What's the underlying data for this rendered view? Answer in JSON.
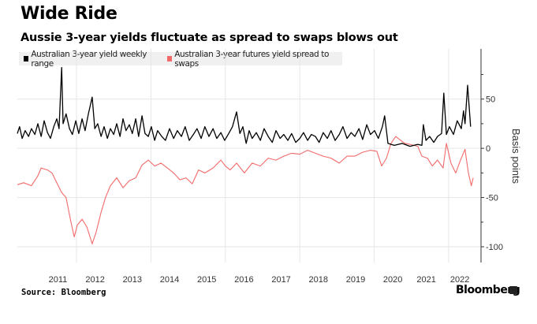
{
  "chart_data": {
    "type": "line",
    "title": "Wide Ride",
    "subtitle": "Aussie 3-year yields fluctuate as spread to swaps blows out",
    "xlabel": "",
    "ylabel": "Basis points",
    "xlim": [
      2010.41,
      2022.87
    ],
    "ylim": [
      -116,
      101
    ],
    "x_ticks": [
      {
        "label": "2011",
        "value": 2011.5
      },
      {
        "label": "2012",
        "value": 2012.5
      },
      {
        "label": "2013",
        "value": 2013.5
      },
      {
        "label": "2014",
        "value": 2014.5
      },
      {
        "label": "2015",
        "value": 2015.5
      },
      {
        "label": "2016",
        "value": 2016.5
      },
      {
        "label": "2017",
        "value": 2017.5
      },
      {
        "label": "2018",
        "value": 2018.5
      },
      {
        "label": "2019",
        "value": 2019.5
      },
      {
        "label": "2020",
        "value": 2020.5
      },
      {
        "label": "2021",
        "value": 2021.4
      },
      {
        "label": "2022",
        "value": 2022.3
      }
    ],
    "x_gridlines": [
      2012,
      2014,
      2016,
      2018,
      2020,
      2022
    ],
    "y_ticks": [
      {
        "label": "50",
        "value": 50
      },
      {
        "label": "0",
        "value": 0
      },
      {
        "label": "-50",
        "value": -50
      },
      {
        "label": "-100",
        "value": -100
      }
    ],
    "y_minor_ticks": [
      75,
      25,
      -25,
      -75
    ],
    "grid": true,
    "legend_position": "top-left",
    "series": [
      {
        "name": "Australian 3-year yield weekly range",
        "color": "#000000",
        "x": [
          2010.41,
          2010.47,
          2010.54,
          2010.62,
          2010.71,
          2010.79,
          2010.88,
          2010.96,
          2011.05,
          2011.13,
          2011.22,
          2011.3,
          2011.39,
          2011.47,
          2011.53,
          2011.6,
          2011.64,
          2011.72,
          2011.81,
          2011.89,
          2011.98,
          2012.06,
          2012.15,
          2012.23,
          2012.32,
          2012.42,
          2012.49,
          2012.57,
          2012.66,
          2012.74,
          2012.83,
          2012.91,
          2013.0,
          2013.08,
          2013.17,
          2013.25,
          2013.33,
          2013.42,
          2013.5,
          2013.59,
          2013.67,
          2013.76,
          2013.84,
          2013.93,
          2014.01,
          2014.1,
          2014.18,
          2014.29,
          2014.39,
          2014.5,
          2014.61,
          2014.71,
          2014.82,
          2014.92,
          2015.03,
          2015.14,
          2015.24,
          2015.35,
          2015.45,
          2015.56,
          2015.67,
          2015.77,
          2015.88,
          2015.98,
          2016.09,
          2016.19,
          2016.3,
          2016.39,
          2016.47,
          2016.56,
          2016.64,
          2016.72,
          2016.83,
          2016.94,
          2017.04,
          2017.15,
          2017.26,
          2017.36,
          2017.47,
          2017.57,
          2017.68,
          2017.78,
          2017.89,
          2018.0,
          2018.1,
          2018.21,
          2018.31,
          2018.42,
          2018.52,
          2018.63,
          2018.74,
          2018.84,
          2018.95,
          2019.06,
          2019.16,
          2019.27,
          2019.38,
          2019.48,
          2019.59,
          2019.69,
          2019.8,
          2019.9,
          2020.01,
          2020.11,
          2020.22,
          2020.28,
          2020.37,
          2020.54,
          2020.75,
          2020.96,
          2021.17,
          2021.28,
          2021.32,
          2021.39,
          2021.49,
          2021.6,
          2021.7,
          2021.81,
          2021.87,
          2021.94,
          2022.02,
          2022.13,
          2022.23,
          2022.34,
          2022.4,
          2022.44,
          2022.51,
          2022.59
        ],
        "values": [
          15,
          22,
          10,
          18,
          12,
          20,
          14,
          25,
          12,
          28,
          16,
          10,
          22,
          30,
          20,
          82,
          25,
          35,
          20,
          14,
          28,
          15,
          30,
          18,
          35,
          52,
          20,
          25,
          12,
          22,
          10,
          20,
          14,
          25,
          12,
          30,
          18,
          24,
          15,
          30,
          12,
          33,
          15,
          12,
          22,
          8,
          18,
          12,
          8,
          20,
          10,
          18,
          12,
          22,
          8,
          14,
          20,
          10,
          22,
          12,
          20,
          10,
          16,
          8,
          15,
          22,
          37,
          15,
          22,
          5,
          18,
          10,
          16,
          8,
          20,
          12,
          6,
          18,
          10,
          14,
          8,
          15,
          6,
          10,
          16,
          8,
          14,
          12,
          6,
          16,
          10,
          18,
          8,
          14,
          22,
          10,
          16,
          12,
          20,
          9,
          24,
          14,
          18,
          10,
          22,
          33,
          5,
          3,
          5,
          2,
          4,
          3,
          24,
          8,
          12,
          6,
          12,
          15,
          56,
          14,
          22,
          14,
          28,
          20,
          38,
          25,
          64,
          22
        ]
      },
      {
        "name": "Australian 3-year futures yield spread to swaps",
        "color": "#f26a6a",
        "x": [
          2010.41,
          2010.58,
          2010.79,
          2010.96,
          2011.05,
          2011.22,
          2011.34,
          2011.47,
          2011.6,
          2011.72,
          2011.85,
          2011.94,
          2012.02,
          2012.15,
          2012.28,
          2012.42,
          2012.53,
          2012.66,
          2012.78,
          2012.91,
          2013.08,
          2013.25,
          2013.42,
          2013.59,
          2013.76,
          2013.93,
          2014.1,
          2014.27,
          2014.44,
          2014.61,
          2014.78,
          2014.94,
          2015.11,
          2015.28,
          2015.45,
          2015.67,
          2015.88,
          2016.0,
          2016.13,
          2016.3,
          2016.51,
          2016.72,
          2016.94,
          2017.15,
          2017.36,
          2017.57,
          2017.78,
          2018.0,
          2018.21,
          2018.42,
          2018.63,
          2018.84,
          2019.06,
          2019.27,
          2019.48,
          2019.69,
          2019.9,
          2020.07,
          2020.2,
          2020.33,
          2020.45,
          2020.58,
          2020.71,
          2020.83,
          2020.96,
          2021.17,
          2021.28,
          2021.43,
          2021.56,
          2021.7,
          2021.85,
          2021.94,
          2022.06,
          2022.19,
          2022.32,
          2022.44,
          2022.53,
          2022.61,
          2022.66
        ],
        "values": [
          -37,
          -35,
          -38,
          -28,
          -20,
          -22,
          -25,
          -35,
          -45,
          -50,
          -75,
          -90,
          -78,
          -72,
          -80,
          -97,
          -85,
          -65,
          -50,
          -38,
          -30,
          -40,
          -33,
          -30,
          -17,
          -12,
          -18,
          -15,
          -20,
          -25,
          -32,
          -30,
          -36,
          -22,
          -25,
          -20,
          -12,
          -18,
          -22,
          -15,
          -25,
          -15,
          -18,
          -10,
          -12,
          -8,
          -5,
          -6,
          -2,
          -5,
          -8,
          -10,
          -15,
          -8,
          -8,
          -4,
          -2,
          -3,
          -18,
          -10,
          5,
          12,
          8,
          5,
          4,
          2,
          -8,
          -10,
          -18,
          -12,
          -20,
          5,
          -15,
          -25,
          -12,
          -1,
          -25,
          -38,
          -30
        ]
      }
    ]
  },
  "legend": {
    "item1": "Australian 3-year yield weekly range",
    "item2": "Australian 3-year futures yield spread to swaps"
  },
  "footer": {
    "source": "Source: Bloomberg",
    "brand": "Bloomberg"
  }
}
